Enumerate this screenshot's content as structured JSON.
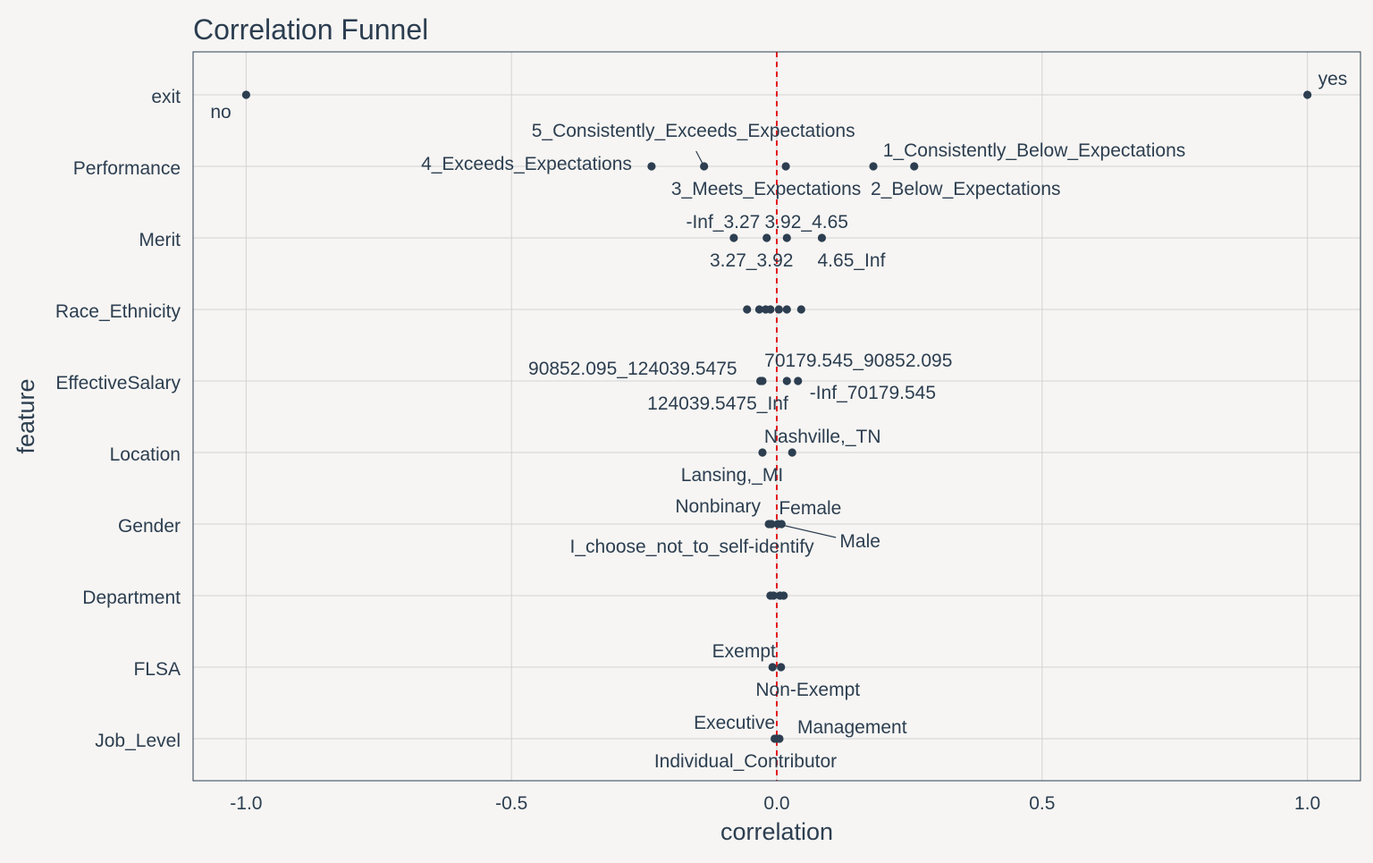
{
  "chart_data": {
    "type": "scatter",
    "title": "Correlation Funnel",
    "xlabel": "correlation",
    "ylabel": "feature",
    "xlim": [
      -1.1,
      1.1
    ],
    "x_ticks": [
      -1.0,
      -0.5,
      0.0,
      0.5,
      1.0
    ],
    "x_tick_labels": [
      "-1.0",
      "-0.5",
      "0.0",
      "0.5",
      "1.0"
    ],
    "reference_line": {
      "x": 0,
      "style": "dashed",
      "color": "#e31a1c"
    },
    "grid": true,
    "point_color": "#2c3e50",
    "features": [
      "exit",
      "Performance",
      "Merit",
      "Race_Ethnicity",
      "EffectiveSalary",
      "Location",
      "Gender",
      "Department",
      "FLSA",
      "Job_Level"
    ],
    "points": [
      {
        "feature": "exit",
        "x": -1.0,
        "label": "no"
      },
      {
        "feature": "exit",
        "x": 1.0,
        "label": "yes"
      },
      {
        "feature": "Performance",
        "x": -0.236,
        "label": "4_Exceeds_Expectations"
      },
      {
        "feature": "Performance",
        "x": -0.137,
        "label": "5_Consistently_Exceeds_Expectations"
      },
      {
        "feature": "Performance",
        "x": 0.017,
        "label": "3_Meets_Expectations"
      },
      {
        "feature": "Performance",
        "x": 0.182,
        "label": "2_Below_Expectations"
      },
      {
        "feature": "Performance",
        "x": 0.259,
        "label": "1_Consistently_Below_Expectations"
      },
      {
        "feature": "Merit",
        "x": -0.081,
        "label": "-Inf_3.27"
      },
      {
        "feature": "Merit",
        "x": -0.019,
        "label": "3.27_3.92"
      },
      {
        "feature": "Merit",
        "x": 0.019,
        "label": "3.92_4.65"
      },
      {
        "feature": "Merit",
        "x": 0.085,
        "label": "4.65_Inf"
      },
      {
        "feature": "Race_Ethnicity",
        "x": -0.056,
        "label": ""
      },
      {
        "feature": "Race_Ethnicity",
        "x": -0.033,
        "label": ""
      },
      {
        "feature": "Race_Ethnicity",
        "x": -0.021,
        "label": ""
      },
      {
        "feature": "Race_Ethnicity",
        "x": -0.012,
        "label": ""
      },
      {
        "feature": "Race_Ethnicity",
        "x": 0.004,
        "label": ""
      },
      {
        "feature": "Race_Ethnicity",
        "x": 0.019,
        "label": ""
      },
      {
        "feature": "Race_Ethnicity",
        "x": 0.046,
        "label": ""
      },
      {
        "feature": "EffectiveSalary",
        "x": -0.031,
        "label": "90852.095_124039.5475"
      },
      {
        "feature": "EffectiveSalary",
        "x": -0.027,
        "label": "124039.5475_Inf"
      },
      {
        "feature": "EffectiveSalary",
        "x": 0.019,
        "label": "70179.545_90852.095"
      },
      {
        "feature": "EffectiveSalary",
        "x": 0.04,
        "label": "-Inf_70179.545"
      },
      {
        "feature": "Location",
        "x": -0.027,
        "label": "Lansing,_MI"
      },
      {
        "feature": "Location",
        "x": 0.029,
        "label": "Nashville,_TN"
      },
      {
        "feature": "Gender",
        "x": -0.015,
        "label": "I_choose_not_to_self-identify"
      },
      {
        "feature": "Gender",
        "x": -0.01,
        "label": "Nonbinary"
      },
      {
        "feature": "Gender",
        "x": 0.002,
        "label": "Male"
      },
      {
        "feature": "Gender",
        "x": 0.009,
        "label": "Female"
      },
      {
        "feature": "Department",
        "x": -0.012,
        "label": ""
      },
      {
        "feature": "Department",
        "x": -0.006,
        "label": ""
      },
      {
        "feature": "Department",
        "x": 0.006,
        "label": ""
      },
      {
        "feature": "Department",
        "x": 0.013,
        "label": ""
      },
      {
        "feature": "FLSA",
        "x": -0.008,
        "label": "Exempt"
      },
      {
        "feature": "FLSA",
        "x": 0.008,
        "label": "Non-Exempt"
      },
      {
        "feature": "Job_Level",
        "x": -0.004,
        "label": "Executive"
      },
      {
        "feature": "Job_Level",
        "x": 0.0,
        "label": "Individual_Contributor"
      },
      {
        "feature": "Job_Level",
        "x": 0.005,
        "label": "Management"
      }
    ]
  }
}
